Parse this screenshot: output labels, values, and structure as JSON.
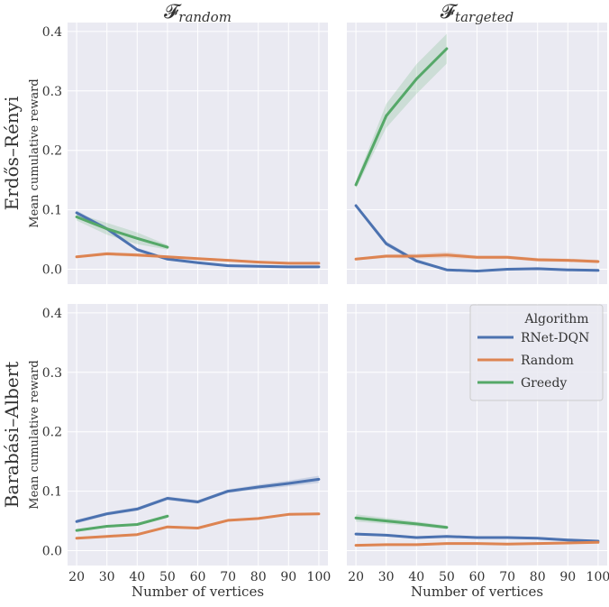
{
  "chart_data": {
    "type": "line",
    "col_titles": [
      "𝓕",
      "𝓕"
    ],
    "col_title_subscripts": [
      "random",
      "targeted"
    ],
    "row_titles": [
      "Erdős–Rényi",
      "Barabási–Albert"
    ],
    "ylabel": "Mean cumulative reward",
    "xlabel": "Number of vertices",
    "x_ticks": [
      20,
      30,
      40,
      50,
      60,
      70,
      80,
      90,
      100
    ],
    "y_ticks": [
      0.0,
      0.1,
      0.2,
      0.3,
      0.4
    ],
    "y_tick_labels": [
      "0.0",
      "0.1",
      "0.2",
      "0.3",
      "0.4"
    ],
    "xlim": [
      17,
      103
    ],
    "ylim": [
      -0.025,
      0.415
    ],
    "grid": true,
    "legend": {
      "title": "Algorithm",
      "placement": "top-right of bottom-right panel",
      "entries": [
        "RNet-DQN",
        "Random",
        "Greedy"
      ]
    },
    "colors": {
      "RNet-DQN": "#4c72b0",
      "Random": "#dd8452",
      "Greedy": "#55a868"
    },
    "panels": [
      {
        "row": "Erdős–Rényi",
        "column": "random",
        "series": [
          {
            "label": "RNet-DQN",
            "x": [
              20,
              30,
              40,
              50,
              60,
              70,
              80,
              90,
              100
            ],
            "y": [
              0.095,
              0.068,
              0.033,
              0.017,
              0.011,
              0.006,
              0.005,
              0.004,
              0.004
            ],
            "band": [
              0.004,
              0.003,
              0.003,
              0.002,
              0.002,
              0.001,
              0.001,
              0.001,
              0.001
            ]
          },
          {
            "label": "Random",
            "x": [
              20,
              30,
              40,
              50,
              60,
              70,
              80,
              90,
              100
            ],
            "y": [
              0.021,
              0.026,
              0.024,
              0.021,
              0.018,
              0.015,
              0.012,
              0.01,
              0.01
            ],
            "band": [
              0.002,
              0.003,
              0.003,
              0.002,
              0.002,
              0.002,
              0.002,
              0.002,
              0.002
            ]
          },
          {
            "label": "Greedy",
            "x": [
              20,
              30,
              40,
              50
            ],
            "y": [
              0.088,
              0.068,
              0.052,
              0.037
            ],
            "band": [
              0.006,
              0.01,
              0.01,
              0.004
            ]
          }
        ]
      },
      {
        "row": "Erdős–Rényi",
        "column": "targeted",
        "series": [
          {
            "label": "RNet-DQN",
            "x": [
              20,
              30,
              40,
              50,
              60,
              70,
              80,
              90,
              100
            ],
            "y": [
              0.107,
              0.043,
              0.014,
              -0.001,
              -0.003,
              0.0,
              0.001,
              -0.001,
              -0.002
            ],
            "band": [
              0.003,
              0.004,
              0.003,
              0.002,
              0.002,
              0.002,
              0.002,
              0.002,
              0.002
            ]
          },
          {
            "label": "Random",
            "x": [
              20,
              30,
              40,
              50,
              60,
              70,
              80,
              90,
              100
            ],
            "y": [
              0.017,
              0.022,
              0.022,
              0.024,
              0.02,
              0.02,
              0.016,
              0.015,
              0.013
            ],
            "band": [
              0.002,
              0.003,
              0.004,
              0.005,
              0.003,
              0.003,
              0.003,
              0.003,
              0.003
            ]
          },
          {
            "label": "Greedy",
            "x": [
              20,
              30,
              40,
              50
            ],
            "y": [
              0.142,
              0.258,
              0.32,
              0.371
            ],
            "band": [
              0.006,
              0.02,
              0.025,
              0.025
            ]
          }
        ]
      },
      {
        "row": "Barabási–Albert",
        "column": "random",
        "series": [
          {
            "label": "RNet-DQN",
            "x": [
              20,
              30,
              40,
              50,
              60,
              70,
              80,
              90,
              100
            ],
            "y": [
              0.049,
              0.062,
              0.07,
              0.088,
              0.082,
              0.1,
              0.107,
              0.113,
              0.12
            ],
            "band": [
              0.003,
              0.003,
              0.003,
              0.003,
              0.003,
              0.003,
              0.004,
              0.005,
              0.006
            ]
          },
          {
            "label": "Random",
            "x": [
              20,
              30,
              40,
              50,
              60,
              70,
              80,
              90,
              100
            ],
            "y": [
              0.021,
              0.024,
              0.027,
              0.04,
              0.038,
              0.051,
              0.054,
              0.061,
              0.062
            ],
            "band": [
              0.002,
              0.002,
              0.002,
              0.002,
              0.002,
              0.002,
              0.002,
              0.002,
              0.002
            ]
          },
          {
            "label": "Greedy",
            "x": [
              20,
              30,
              40,
              50
            ],
            "y": [
              0.034,
              0.041,
              0.044,
              0.058
            ],
            "band": [
              0.002,
              0.002,
              0.002,
              0.003
            ]
          }
        ]
      },
      {
        "row": "Barabási–Albert",
        "column": "targeted",
        "series": [
          {
            "label": "RNet-DQN",
            "x": [
              20,
              30,
              40,
              50,
              60,
              70,
              80,
              90,
              100
            ],
            "y": [
              0.028,
              0.026,
              0.022,
              0.024,
              0.022,
              0.022,
              0.021,
              0.018,
              0.016
            ],
            "band": [
              0.002,
              0.002,
              0.002,
              0.002,
              0.002,
              0.002,
              0.002,
              0.002,
              0.002
            ]
          },
          {
            "label": "Random",
            "x": [
              20,
              30,
              40,
              50,
              60,
              70,
              80,
              90,
              100
            ],
            "y": [
              0.009,
              0.01,
              0.01,
              0.012,
              0.012,
              0.011,
              0.012,
              0.013,
              0.014
            ],
            "band": [
              0.001,
              0.001,
              0.001,
              0.001,
              0.001,
              0.001,
              0.001,
              0.001,
              0.001
            ]
          },
          {
            "label": "Greedy",
            "x": [
              20,
              30,
              40,
              50
            ],
            "y": [
              0.055,
              0.05,
              0.045,
              0.039
            ],
            "band": [
              0.006,
              0.005,
              0.004,
              0.003
            ]
          }
        ]
      }
    ]
  }
}
